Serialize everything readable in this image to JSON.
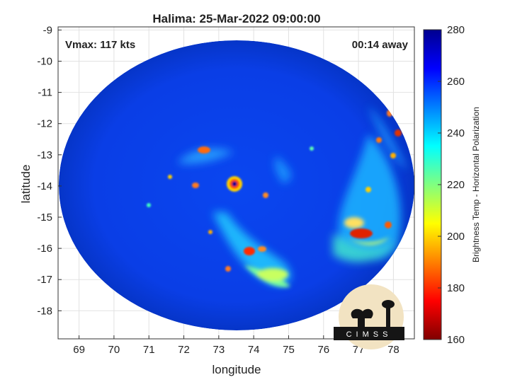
{
  "chart_data": {
    "type": "heatmap",
    "title": "Halima: 25-Mar-2022 09:00:00",
    "xlabel": "longitude",
    "ylabel": "latitude",
    "xlim": [
      68.4,
      78.6
    ],
    "ylim": [
      -18.9,
      -8.9
    ],
    "x_ticks": [
      69,
      70,
      71,
      72,
      73,
      74,
      75,
      76,
      77,
      78
    ],
    "y_ticks": [
      -9,
      -10,
      -11,
      -12,
      -13,
      -14,
      -15,
      -16,
      -17,
      -18
    ],
    "grid": true,
    "annotations": {
      "vmax": "Vmax: 117 kts",
      "time_away": "00:14 away"
    },
    "storm_center": {
      "lon": 73.3,
      "lat": -13.9
    },
    "colorbar": {
      "label": "Brightness Temp - Horizontal Polarization",
      "range": [
        160,
        280
      ],
      "ticks": [
        280,
        260,
        240,
        220,
        200,
        180,
        160
      ],
      "colormap": [
        "#00008f",
        "#0000ff",
        "#0080ff",
        "#00ffff",
        "#80ff80",
        "#ffff00",
        "#ff8000",
        "#ff0000",
        "#800000"
      ]
    },
    "logo_text": "CIMSS"
  }
}
